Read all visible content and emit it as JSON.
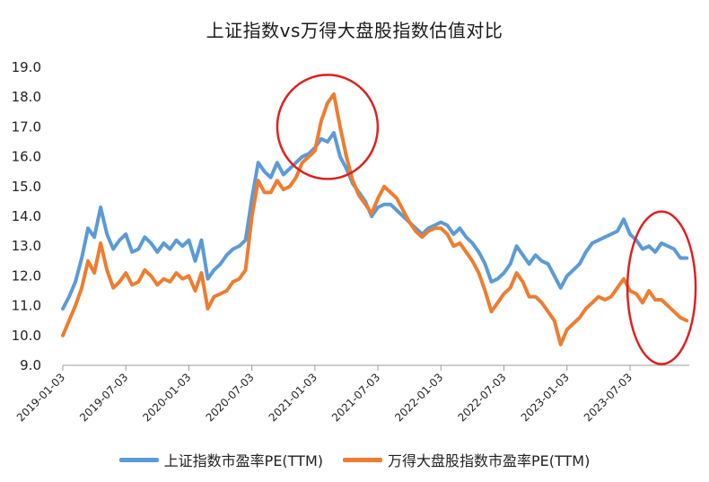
{
  "chart_data": {
    "type": "line",
    "title": "上证指数vs万得大盘股指数估值对比",
    "ylim": [
      9.0,
      19.0
    ],
    "yticks": [
      "9.0",
      "10.0",
      "11.0",
      "12.0",
      "13.0",
      "14.0",
      "15.0",
      "16.0",
      "17.0",
      "18.0",
      "19.0"
    ],
    "xticks": [
      "2019-01-03",
      "2019-07-03",
      "2020-01-03",
      "2020-07-03",
      "2021-01-03",
      "2021-07-03",
      "2022-01-03",
      "2022-07-03",
      "2023-01-03",
      "2023-07-03"
    ],
    "colors": {
      "series1": "#5b9bd5",
      "series2": "#ed7d31",
      "highlight": "#e02020"
    },
    "series": [
      {
        "name": "上证指数市盈率PE(TTM)",
        "x": [
          2019.0,
          2019.05,
          2019.1,
          2019.15,
          2019.2,
          2019.25,
          2019.3,
          2019.35,
          2019.4,
          2019.45,
          2019.5,
          2019.55,
          2019.6,
          2019.65,
          2019.7,
          2019.75,
          2019.8,
          2019.85,
          2019.9,
          2019.95,
          2020.0,
          2020.05,
          2020.1,
          2020.15,
          2020.2,
          2020.25,
          2020.3,
          2020.35,
          2020.4,
          2020.45,
          2020.5,
          2020.55,
          2020.6,
          2020.65,
          2020.7,
          2020.75,
          2020.8,
          2020.85,
          2020.9,
          2020.95,
          2021.0,
          2021.05,
          2021.1,
          2021.15,
          2021.2,
          2021.25,
          2021.3,
          2021.35,
          2021.4,
          2021.45,
          2021.5,
          2021.55,
          2021.6,
          2021.65,
          2021.7,
          2021.75,
          2021.8,
          2021.85,
          2021.9,
          2021.95,
          2022.0,
          2022.05,
          2022.1,
          2022.15,
          2022.2,
          2022.25,
          2022.3,
          2022.35,
          2022.4,
          2022.45,
          2022.5,
          2022.55,
          2022.6,
          2022.65,
          2022.7,
          2022.75,
          2022.8,
          2022.85,
          2022.9,
          2022.95,
          2023.0,
          2023.05,
          2023.1,
          2023.15,
          2023.2,
          2023.25,
          2023.3,
          2023.35,
          2023.4,
          2023.45,
          2023.5,
          2023.55,
          2023.6,
          2023.65,
          2023.7,
          2023.75,
          2023.8,
          2023.85,
          2023.9,
          2023.95
        ],
        "values": [
          10.9,
          11.3,
          11.8,
          12.6,
          13.6,
          13.3,
          14.3,
          13.4,
          12.9,
          13.2,
          13.4,
          12.8,
          12.9,
          13.3,
          13.1,
          12.8,
          13.1,
          12.9,
          13.2,
          13.0,
          13.2,
          12.5,
          13.2,
          11.9,
          12.2,
          12.4,
          12.7,
          12.9,
          13.0,
          13.2,
          14.6,
          15.8,
          15.5,
          15.3,
          15.8,
          15.4,
          15.6,
          15.8,
          16.0,
          16.1,
          16.3,
          16.6,
          16.5,
          16.8,
          16.0,
          15.6,
          15.1,
          14.8,
          14.5,
          14.0,
          14.3,
          14.4,
          14.4,
          14.2,
          14.0,
          13.8,
          13.6,
          13.4,
          13.6,
          13.7,
          13.8,
          13.7,
          13.4,
          13.6,
          13.3,
          13.1,
          12.8,
          12.4,
          11.8,
          11.9,
          12.1,
          12.4,
          13.0,
          12.7,
          12.4,
          12.7,
          12.5,
          12.4,
          12.0,
          11.6,
          12.0,
          12.2,
          12.4,
          12.8,
          13.1,
          13.2,
          13.3,
          13.4,
          13.5,
          13.9,
          13.4,
          13.2,
          12.9,
          13.0,
          12.8,
          13.1,
          13.0,
          12.9,
          12.6,
          12.6
        ]
      },
      {
        "name": "万得大盘股指数市盈率PE(TTM)",
        "x": [
          2019.0,
          2019.05,
          2019.1,
          2019.15,
          2019.2,
          2019.25,
          2019.3,
          2019.35,
          2019.4,
          2019.45,
          2019.5,
          2019.55,
          2019.6,
          2019.65,
          2019.7,
          2019.75,
          2019.8,
          2019.85,
          2019.9,
          2019.95,
          2020.0,
          2020.05,
          2020.1,
          2020.15,
          2020.2,
          2020.25,
          2020.3,
          2020.35,
          2020.4,
          2020.45,
          2020.5,
          2020.55,
          2020.6,
          2020.65,
          2020.7,
          2020.75,
          2020.8,
          2020.85,
          2020.9,
          2020.95,
          2021.0,
          2021.05,
          2021.1,
          2021.15,
          2021.2,
          2021.25,
          2021.3,
          2021.35,
          2021.4,
          2021.45,
          2021.5,
          2021.55,
          2021.6,
          2021.65,
          2021.7,
          2021.75,
          2021.8,
          2021.85,
          2021.9,
          2021.95,
          2022.0,
          2022.05,
          2022.1,
          2022.15,
          2022.2,
          2022.25,
          2022.3,
          2022.35,
          2022.4,
          2022.45,
          2022.5,
          2022.55,
          2022.6,
          2022.65,
          2022.7,
          2022.75,
          2022.8,
          2022.85,
          2022.9,
          2022.95,
          2023.0,
          2023.05,
          2023.1,
          2023.15,
          2023.2,
          2023.25,
          2023.3,
          2023.35,
          2023.4,
          2023.45,
          2023.5,
          2023.55,
          2023.6,
          2023.65,
          2023.7,
          2023.75,
          2023.8,
          2023.85,
          2023.9,
          2023.95
        ],
        "values": [
          10.0,
          10.5,
          11.0,
          11.6,
          12.5,
          12.1,
          13.1,
          12.2,
          11.6,
          11.8,
          12.1,
          11.7,
          11.8,
          12.2,
          12.0,
          11.7,
          11.9,
          11.8,
          12.1,
          11.9,
          12.0,
          11.5,
          12.1,
          10.9,
          11.3,
          11.4,
          11.5,
          11.8,
          11.9,
          12.2,
          14.0,
          15.2,
          14.8,
          14.8,
          15.2,
          14.9,
          15.0,
          15.3,
          15.8,
          16.0,
          16.2,
          17.2,
          17.8,
          18.1,
          17.0,
          16.0,
          15.2,
          14.7,
          14.4,
          14.1,
          14.6,
          15.0,
          14.8,
          14.6,
          14.2,
          13.8,
          13.5,
          13.3,
          13.5,
          13.6,
          13.6,
          13.4,
          13.0,
          13.1,
          12.8,
          12.5,
          12.1,
          11.5,
          10.8,
          11.1,
          11.4,
          11.6,
          12.1,
          11.8,
          11.3,
          11.3,
          11.1,
          10.8,
          10.5,
          9.7,
          10.2,
          10.4,
          10.6,
          10.9,
          11.1,
          11.3,
          11.2,
          11.3,
          11.6,
          11.9,
          11.5,
          11.4,
          11.1,
          11.5,
          11.2,
          11.2,
          11.0,
          10.8,
          10.6,
          10.5
        ]
      }
    ]
  }
}
